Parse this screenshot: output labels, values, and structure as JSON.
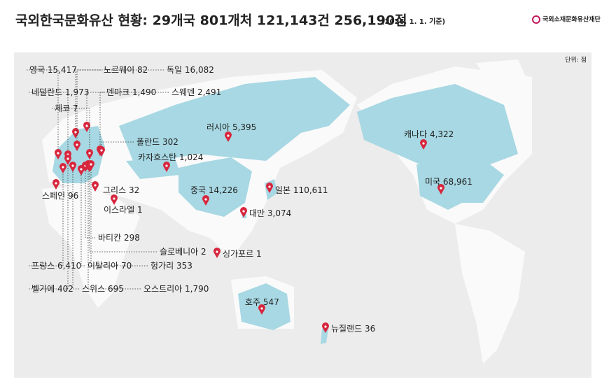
{
  "header": {
    "title": "국외한국문화유산 현황: 29개국 801개처 121,143건 256,190점",
    "subtitle": "(2026. 1. 1. 기준)",
    "logo": "국외소재문화유산재단",
    "unit": "단위: 점"
  },
  "countries": [
    {
      "name": "영국",
      "count": "15,417"
    },
    {
      "name": "노르웨이",
      "count": "82"
    },
    {
      "name": "독일",
      "count": "16,082"
    },
    {
      "name": "네덜란드",
      "count": "1,973"
    },
    {
      "name": "덴마크",
      "count": "1,490"
    },
    {
      "name": "스웨덴",
      "count": "2,491"
    },
    {
      "name": "체코",
      "count": "7"
    },
    {
      "name": "폴란드",
      "count": "302"
    },
    {
      "name": "러시아",
      "count": "5,395"
    },
    {
      "name": "카자흐스탄",
      "count": "1,024"
    },
    {
      "name": "스페인",
      "count": "96"
    },
    {
      "name": "그리스",
      "count": "32"
    },
    {
      "name": "이스라엘",
      "count": "1"
    },
    {
      "name": "바티칸",
      "count": "298"
    },
    {
      "name": "프랑스",
      "count": "6,410"
    },
    {
      "name": "이탈리아",
      "count": "70"
    },
    {
      "name": "벨기에",
      "count": "402"
    },
    {
      "name": "스위스",
      "count": "695"
    },
    {
      "name": "오스트리아",
      "count": "1,790"
    },
    {
      "name": "슬로베니아",
      "count": "2"
    },
    {
      "name": "헝가리",
      "count": "353"
    },
    {
      "name": "중국",
      "count": "14,226"
    },
    {
      "name": "일본",
      "count": "110,611"
    },
    {
      "name": "대만",
      "count": "3,074"
    },
    {
      "name": "싱가포르",
      "count": "1"
    },
    {
      "name": "호주",
      "count": "547"
    },
    {
      "name": "뉴질랜드",
      "count": "36"
    },
    {
      "name": "캐나다",
      "count": "4,322"
    },
    {
      "name": "미국",
      "count": "68,961"
    }
  ]
}
